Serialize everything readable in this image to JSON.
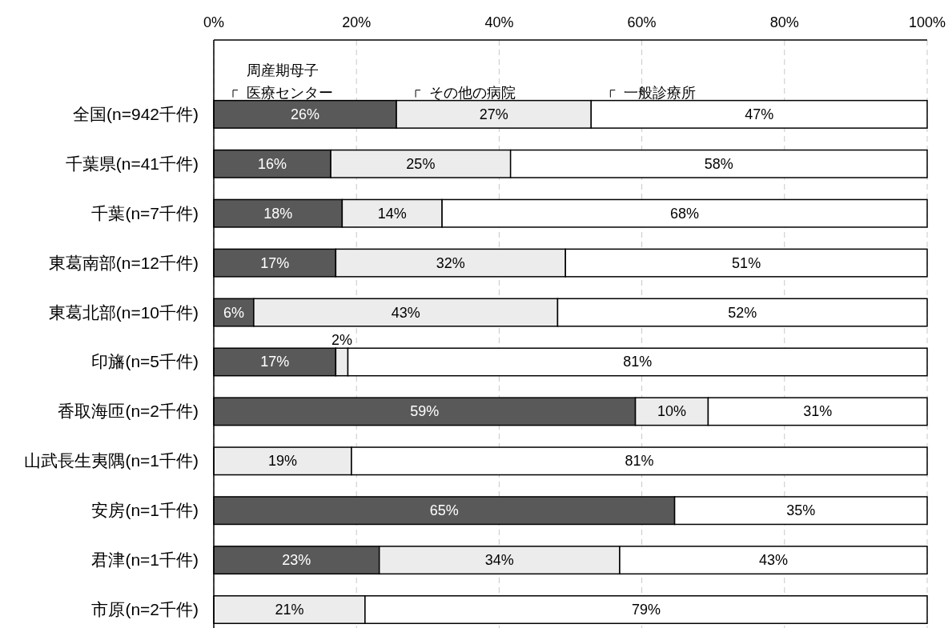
{
  "chart_data": {
    "type": "bar",
    "orientation": "horizontal",
    "stacked": true,
    "legend": "top",
    "categories": [
      "全国(n=942千件)",
      "千葉県(n=41千件)",
      "千葉(n=7千件)",
      "東葛南部(n=12千件)",
      "東葛北部(n=10千件)",
      "印旛(n=5千件)",
      "香取海匝(n=2千件)",
      "山武長生夷隅(n=1千件)",
      "安房(n=1千件)",
      "君津(n=1千件)",
      "市原(n=2千件)"
    ],
    "xlim": [
      0,
      100
    ],
    "xticks": [
      {
        "value": 0,
        "label": "0%"
      },
      {
        "value": 20,
        "label": "20%"
      },
      {
        "value": 40,
        "label": "40%"
      },
      {
        "value": 60,
        "label": "60%"
      },
      {
        "value": 80,
        "label": "80%"
      },
      {
        "value": 100,
        "label": "100%"
      }
    ],
    "grid": "x",
    "series": [
      {
        "name": "周産期母子医療センター",
        "color": "#595959",
        "values": [
          25.6,
          16.4,
          18.0,
          17.1,
          5.6,
          17.1,
          59.1,
          null,
          64.6,
          23.2,
          null
        ],
        "value_labels": [
          "26%",
          "16%",
          "18%",
          "17%",
          "6%",
          "17%",
          "59%",
          null,
          "65%",
          "23%",
          null
        ]
      },
      {
        "name": "その他の病院",
        "color": "#ececec",
        "values": [
          27.3,
          25.2,
          14.0,
          32.2,
          42.6,
          1.7,
          10.2,
          19.3,
          null,
          33.7,
          21.2
        ],
        "value_labels": [
          "27%",
          "25%",
          "14%",
          "32%",
          "43%",
          "2%",
          "10%",
          "19%",
          null,
          "34%",
          "21%"
        ]
      },
      {
        "name": "一般診療所",
        "color": "#ffffff",
        "values": [
          47.1,
          58.4,
          68.0,
          50.7,
          51.8,
          81.2,
          30.7,
          80.7,
          35.4,
          43.1,
          78.8
        ],
        "value_labels": [
          "47%",
          "58%",
          "68%",
          "51%",
          "52%",
          "81%",
          "31%",
          "81%",
          "35%",
          "43%",
          "79%"
        ]
      }
    ]
  }
}
